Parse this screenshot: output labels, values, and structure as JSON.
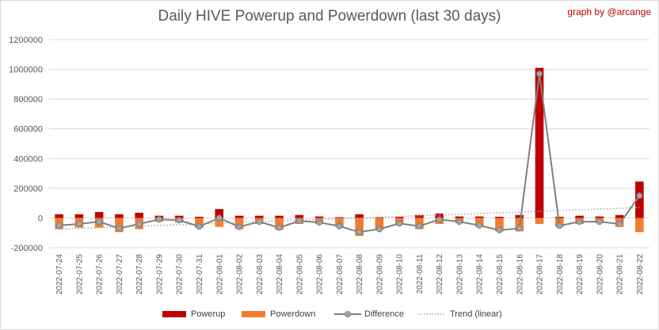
{
  "title": "Daily HIVE Powerup and Powerdown (last 30 days)",
  "credit": "graph by @arcange",
  "colors": {
    "powerup": "#c00000",
    "powerdown": "#ed7d31",
    "difference": "#7f7f7f",
    "difference_marker": "#a5a5a5",
    "trend": "#a6a6a6",
    "grid": "#d9d9d9"
  },
  "chart_data": {
    "type": "bar",
    "title": "Daily HIVE Powerup and Powerdown (last 30 days)",
    "xlabel": "",
    "ylabel": "",
    "ylim": [
      -200000,
      1200000
    ],
    "yticks": [
      -200000,
      0,
      200000,
      400000,
      600000,
      800000,
      1000000,
      1200000
    ],
    "ytick_labels": [
      "-200000",
      "0",
      "200000",
      "400000",
      "600000",
      "800000",
      "1000000",
      "1200000"
    ],
    "grid": true,
    "legend_position": "bottom",
    "categories": [
      "2022-07-24",
      "2022-07-25",
      "2022-07-26",
      "2022-07-27",
      "2022-07-28",
      "2022-07-29",
      "2022-07-30",
      "2022-07-31",
      "2022-08-01",
      "2022-08-02",
      "2022-08-03",
      "2022-08-04",
      "2022-08-05",
      "2022-08-06",
      "2022-08-07",
      "2022-08-08",
      "2022-08-09",
      "2022-08-10",
      "2022-08-11",
      "2022-08-12",
      "2022-08-13",
      "2022-08-14",
      "2022-08-15",
      "2022-08-16",
      "2022-08-17",
      "2022-08-18",
      "2022-08-19",
      "2022-08-20",
      "2022-08-21",
      "2022-08-22"
    ],
    "series": [
      {
        "name": "Powerup",
        "type": "bar",
        "values": [
          25000,
          25000,
          40000,
          25000,
          35000,
          15000,
          15000,
          8000,
          60000,
          15000,
          15000,
          15000,
          20000,
          10000,
          5000,
          25000,
          5000,
          8000,
          20000,
          30000,
          10000,
          10000,
          8000,
          20000,
          1010000,
          8000,
          15000,
          10000,
          20000,
          245000
        ]
      },
      {
        "name": "Powerdown",
        "type": "bar",
        "values": [
          -75000,
          -65000,
          -65000,
          -95000,
          -75000,
          -25000,
          -30000,
          -65000,
          -60000,
          -75000,
          -40000,
          -80000,
          -40000,
          -40000,
          -60000,
          -120000,
          -80000,
          -45000,
          -75000,
          -40000,
          -35000,
          -60000,
          -90000,
          -90000,
          -40000,
          -60000,
          -40000,
          -35000,
          -60000,
          -95000
        ]
      },
      {
        "name": "Difference",
        "type": "line",
        "values": [
          -50000,
          -40000,
          -25000,
          -70000,
          -40000,
          -10000,
          -15000,
          -57000,
          0,
          -60000,
          -25000,
          -65000,
          -20000,
          -30000,
          -55000,
          -95000,
          -75000,
          -37000,
          -55000,
          -10000,
          -25000,
          -50000,
          -82000,
          -70000,
          970000,
          -52000,
          -25000,
          -25000,
          -40000,
          150000
        ]
      },
      {
        "name": "Trend (linear)",
        "type": "line",
        "style": "dotted",
        "values": [
          -75000,
          -70000,
          -65000,
          -60000,
          -55000,
          -50000,
          -45000,
          -40000,
          -35000,
          -30000,
          -25000,
          -20000,
          -15000,
          -10000,
          -5000,
          0,
          5000,
          10000,
          15000,
          20000,
          25000,
          30000,
          35000,
          40000,
          45000,
          50000,
          55000,
          60000,
          65000,
          70000
        ]
      }
    ]
  }
}
